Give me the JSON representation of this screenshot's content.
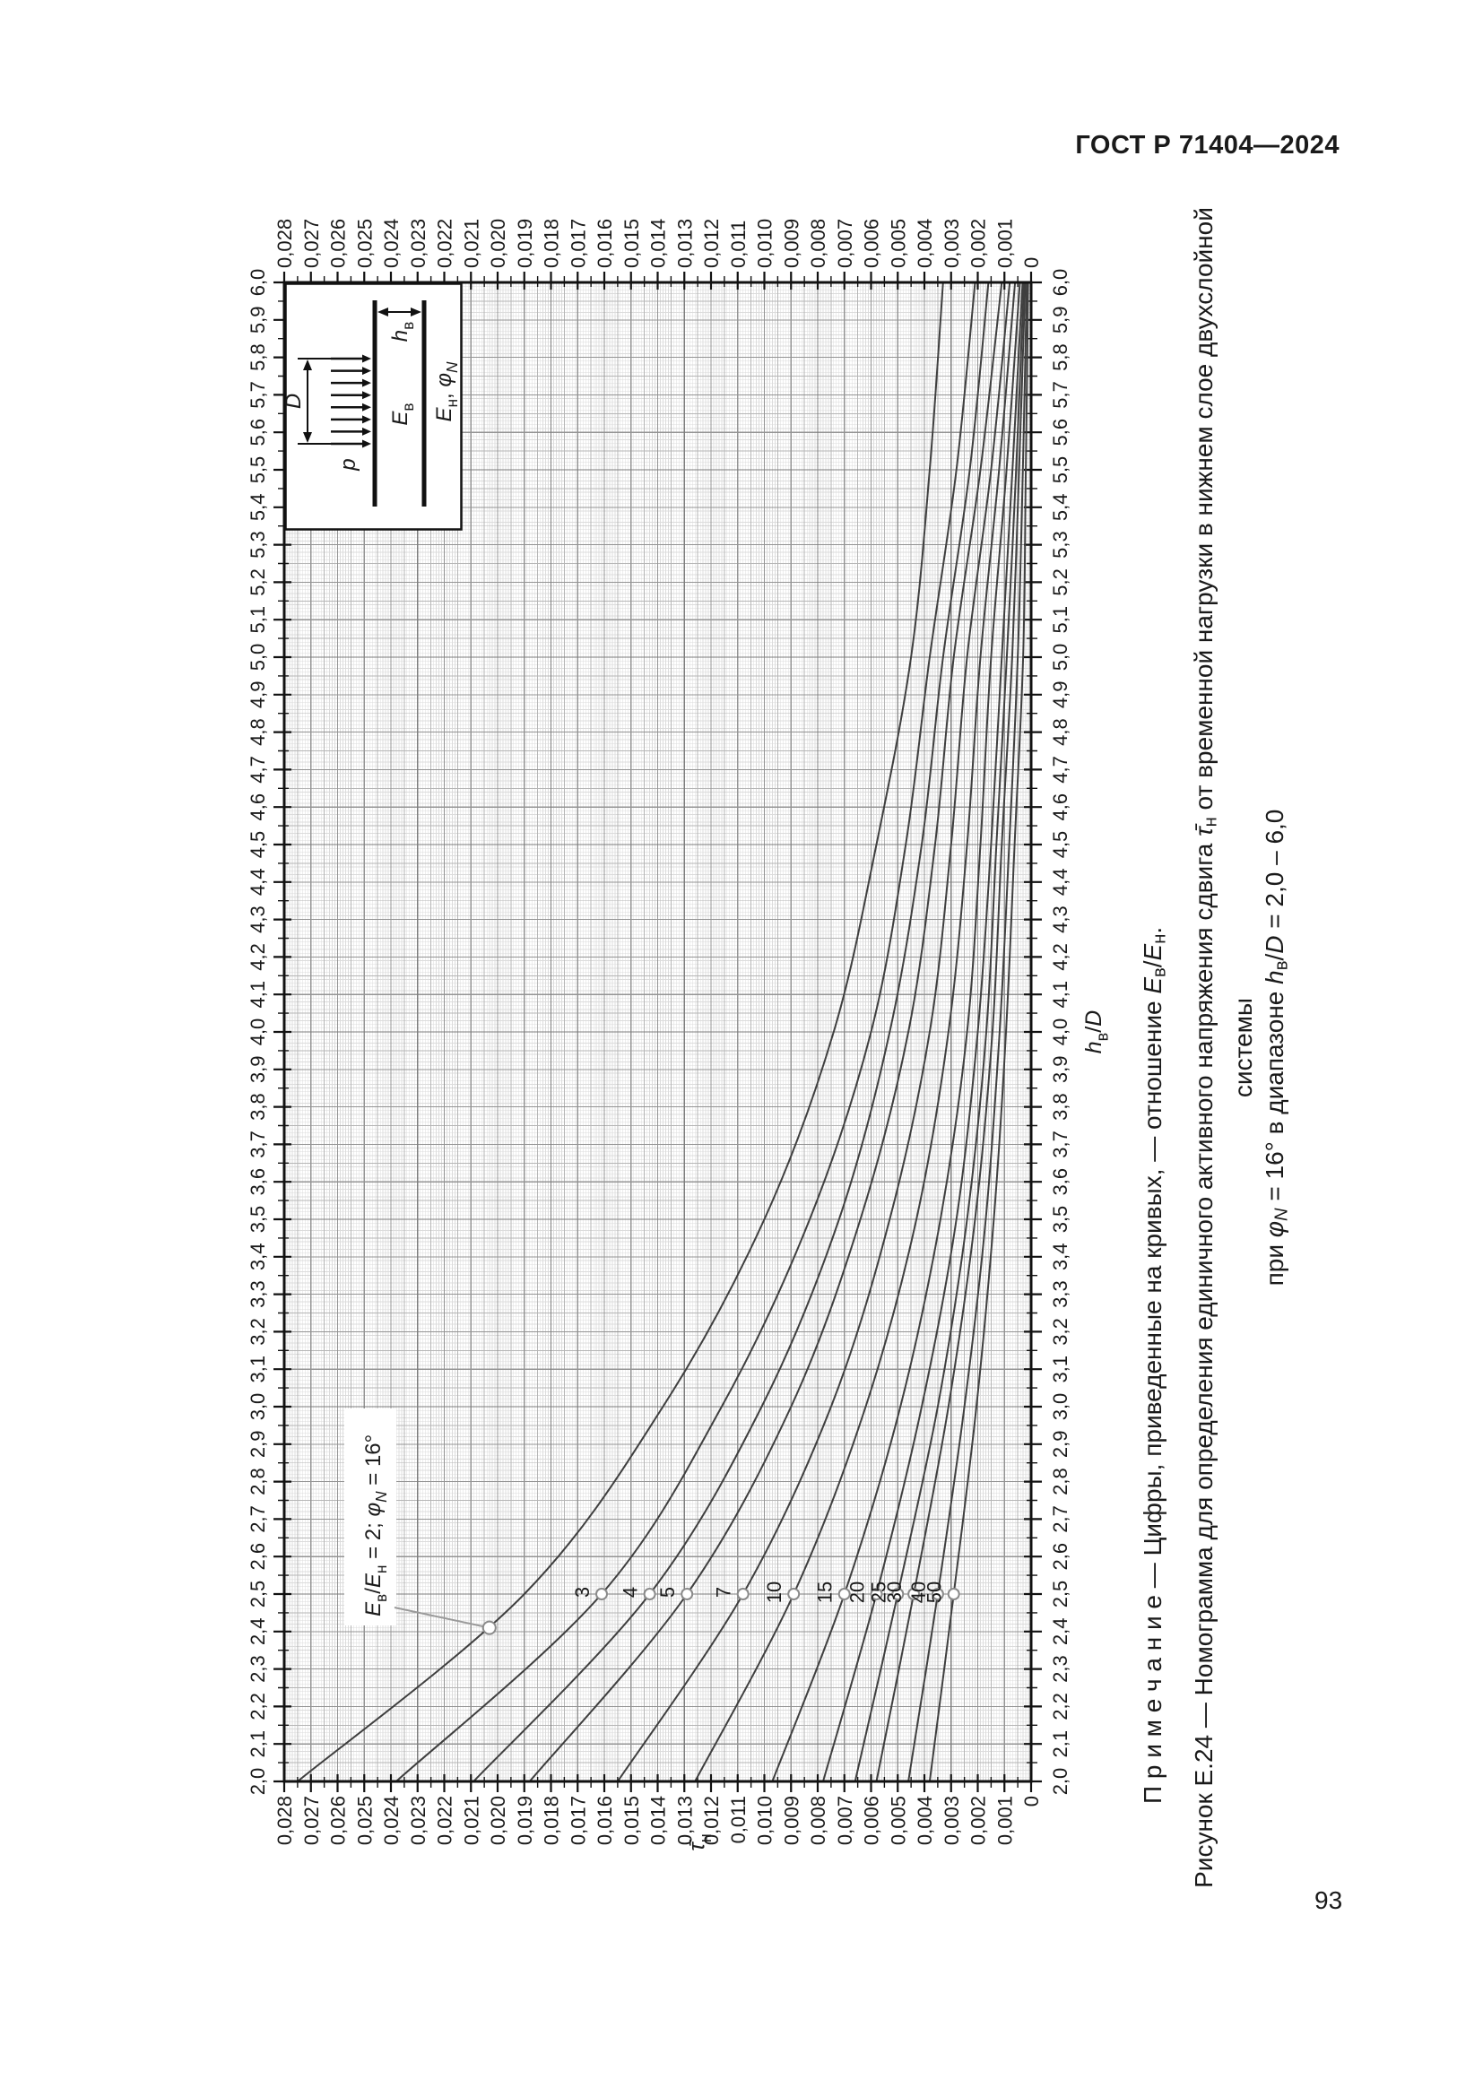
{
  "page": {
    "header": "ГОСТ Р 71404—2024",
    "page_number": "93"
  },
  "figure": {
    "captions": {
      "note_parts": [
        {
          "t": "П р и м е ч а н и е — Цифры, приведенные на кривых, — отношение "
        },
        {
          "t": "E",
          "i": true
        },
        {
          "t": "в",
          "sub": true
        },
        {
          "t": "/"
        },
        {
          "t": "E",
          "i": true
        },
        {
          "t": "н",
          "sub": true
        },
        {
          "t": "."
        }
      ],
      "caption_line1_parts": [
        {
          "t": "Рисунок Е.24 — Номограмма для определения единичного активного напряжения сдвига "
        },
        {
          "t": "τ̄",
          "i": true
        },
        {
          "t": "н",
          "sub": true
        },
        {
          "t": " от временной нагрузки в нижнем слое двухслойной системы"
        }
      ],
      "caption_line2_parts": [
        {
          "t": "при "
        },
        {
          "t": "φ",
          "i": true
        },
        {
          "t": "N",
          "i": true,
          "sub": true
        },
        {
          "t": " = 16° в диапазоне "
        },
        {
          "t": "h",
          "i": true
        },
        {
          "t": "в",
          "sub": true
        },
        {
          "t": "/"
        },
        {
          "t": "D",
          "i": true
        },
        {
          "t": " = 2,0 – 6,0"
        }
      ]
    },
    "annotation": {
      "parts": [
        {
          "t": "E",
          "i": true
        },
        {
          "t": "в",
          "sub": true
        },
        {
          "t": "/"
        },
        {
          "t": "E",
          "i": true
        },
        {
          "t": "н",
          "sub": true
        },
        {
          "t": " = 2; "
        },
        {
          "t": "φ",
          "i": true
        },
        {
          "t": "N",
          "i": true,
          "sub": true
        },
        {
          "t": " = 16°"
        }
      ],
      "target_curve": "2",
      "target_h": 2.41
    },
    "inset": {
      "pressure_parts": [
        {
          "t": "p",
          "i": true
        }
      ],
      "diameter_parts": [
        {
          "t": "D",
          "i": true
        }
      ],
      "upper_modulus_parts": [
        {
          "t": "E",
          "i": true
        },
        {
          "t": "в",
          "sub": true
        }
      ],
      "thickness_parts": [
        {
          "t": "h",
          "i": true
        },
        {
          "t": "в",
          "sub": true
        }
      ],
      "lower_modulus_parts": [
        {
          "t": "E",
          "i": true
        },
        {
          "t": "н",
          "sub": true
        },
        {
          "t": ", "
        },
        {
          "t": "φ",
          "i": true
        },
        {
          "t": "N",
          "i": true,
          "sub": true
        }
      ]
    }
  },
  "chart_data": {
    "type": "line",
    "x_axis": {
      "title_parts": [
        {
          "t": "h",
          "i": true
        },
        {
          "t": "в",
          "sub": true
        },
        {
          "t": "/"
        },
        {
          "t": "D",
          "i": true
        }
      ],
      "min": 2.0,
      "max": 6.0,
      "tick_step": 0.1,
      "tick_labels": [
        "2,0",
        "2,1",
        "2,2",
        "2,3",
        "2,4",
        "2,5",
        "2,6",
        "2,7",
        "2,8",
        "2,9",
        "3,0",
        "3,1",
        "3,2",
        "3,3",
        "3,4",
        "3,5",
        "3,6",
        "3,7",
        "3,8",
        "3,9",
        "4,0",
        "4,1",
        "4,2",
        "4,3",
        "4,4",
        "4,5",
        "4,6",
        "4,7",
        "4,8",
        "4,9",
        "5,0",
        "5,1",
        "5,2",
        "5,3",
        "5,4",
        "5,5",
        "5,6",
        "5,7",
        "5,8",
        "5,9",
        "6,0"
      ]
    },
    "y_axis": {
      "title_parts": [
        {
          "t": "τ̄",
          "i": true
        },
        {
          "t": "н",
          "sub": true
        }
      ],
      "min": 0,
      "max": 0.028,
      "tick_step": 0.001,
      "tick_labels": [
        "0,028",
        "0,027",
        "0,026",
        "0,025",
        "0,024",
        "0,023",
        "0,022",
        "0,021",
        "0,020",
        "0,019",
        "0,018",
        "0,017",
        "0,016",
        "0,015",
        "0,014",
        "0,013",
        "0,012",
        "0,011",
        "0,010",
        "0,009",
        "0,008",
        "0,007",
        "0,006",
        "0,005",
        "0,004",
        "0,003",
        "0,002",
        "0,001",
        "0"
      ]
    },
    "x": [
      2.0,
      2.5,
      3.0,
      3.5,
      4.0,
      4.5,
      5.0,
      5.5,
      6.0
    ],
    "series": [
      {
        "label": "2",
        "marker_h": 2.41,
        "show_label": false,
        "values": [
          0.0275,
          0.019,
          0.0138,
          0.01,
          0.0074,
          0.0058,
          0.0045,
          0.0038,
          0.0033
        ]
      },
      {
        "label": "3",
        "marker_h": 2.5,
        "show_label": true,
        "values": [
          0.0238,
          0.0161,
          0.0116,
          0.0083,
          0.006,
          0.0047,
          0.0038,
          0.0028,
          0.0021
        ]
      },
      {
        "label": "4",
        "marker_h": 2.5,
        "show_label": true,
        "values": [
          0.0209,
          0.0143,
          0.0101,
          0.0072,
          0.0053,
          0.0041,
          0.0033,
          0.0023,
          0.0016
        ]
      },
      {
        "label": "5",
        "marker_h": 2.5,
        "show_label": true,
        "values": [
          0.0188,
          0.0129,
          0.009,
          0.0064,
          0.0046,
          0.0036,
          0.0029,
          0.0019,
          0.0011
        ]
      },
      {
        "label": "7",
        "marker_h": 2.5,
        "show_label": true,
        "values": [
          0.0155,
          0.0108,
          0.0075,
          0.0053,
          0.0038,
          0.003,
          0.0024,
          0.0015,
          0.0008
        ]
      },
      {
        "label": "10",
        "marker_h": 2.5,
        "show_label": true,
        "values": [
          0.0126,
          0.0089,
          0.0062,
          0.0043,
          0.0031,
          0.0024,
          0.0019,
          0.0012,
          0.0006
        ]
      },
      {
        "label": "15",
        "marker_h": 2.5,
        "show_label": true,
        "values": [
          0.0097,
          0.007,
          0.0049,
          0.0034,
          0.0024,
          0.0019,
          0.0015,
          0.00092,
          0.00042
        ]
      },
      {
        "label": "20",
        "marker_h": 2.5,
        "show_label": true,
        "values": [
          0.0078,
          0.0058,
          0.0041,
          0.0028,
          0.002,
          0.0015,
          0.0011,
          0.0007,
          0.00032
        ]
      },
      {
        "label": "25",
        "marker_h": 2.5,
        "show_label": true,
        "values": [
          0.0066,
          0.005,
          0.0035,
          0.0024,
          0.00168,
          0.0013,
          0.00091,
          0.00056,
          0.00027
        ]
      },
      {
        "label": "30",
        "marker_h": 2.5,
        "show_label": true,
        "values": [
          0.0058,
          0.0044,
          0.0031,
          0.0021,
          0.00145,
          0.0011,
          0.00071,
          0.00045,
          0.00022
        ]
      },
      {
        "label": "40",
        "marker_h": 2.5,
        "show_label": true,
        "values": [
          0.0046,
          0.0035,
          0.0025,
          0.0017,
          0.00118,
          0.00082,
          0.0005,
          0.00031,
          0.00016
        ]
      },
      {
        "label": "50",
        "marker_h": 2.5,
        "show_label": true,
        "values": [
          0.0038,
          0.0029,
          0.00205,
          0.0014,
          0.00094,
          0.00062,
          0.0003,
          0.0002,
          0.00011
        ]
      }
    ],
    "grid": {
      "fine_x": 0.01,
      "medium_x": 0.05,
      "major_x": 0.1,
      "fine_y": 0.0001,
      "medium_y": 0.0005,
      "major_y": 0.001
    },
    "legend_position": "on-curve-markers",
    "colors": {
      "curve": "#3f3f3f",
      "marker": "#8a8a8a",
      "leader": "#9a9a9a",
      "text": "#1a1a1a",
      "axis": "#111111",
      "grid_fine": "#dcdcdc",
      "grid_medium": "#b6b6b6",
      "grid_major": "#949494",
      "grid_bold": "#7d7d7d"
    }
  }
}
